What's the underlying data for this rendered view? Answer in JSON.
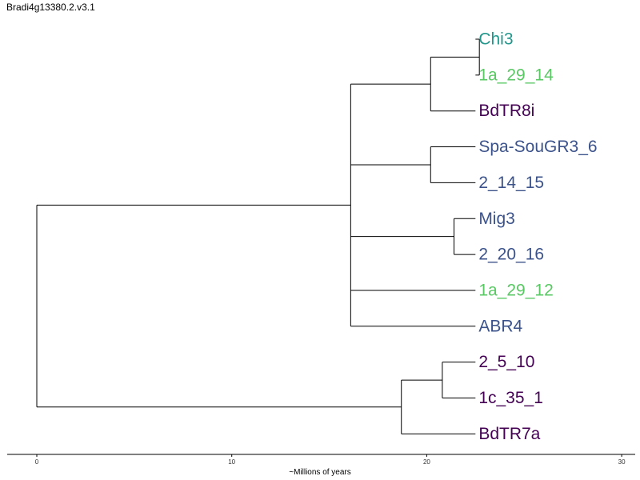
{
  "title": "Bradi4g13380.2.v3.1",
  "axis": {
    "label": "~Millions of years",
    "range": [
      0,
      30
    ],
    "ticks": [
      0,
      10,
      20,
      30
    ]
  },
  "palette": {
    "teal": "#22968b",
    "green": "#5ac864",
    "purple": "#440154",
    "blue": "#3b528b"
  },
  "tree": {
    "root_age": 0,
    "leaf_age": 22.5,
    "leaves": [
      {
        "label": "Chi3",
        "color": "teal"
      },
      {
        "label": "1a_29_14",
        "color": "green"
      },
      {
        "label": "BdTR8i",
        "color": "purple"
      },
      {
        "label": "Spa-SouGR3_6",
        "color": "blue"
      },
      {
        "label": "2_14_15",
        "color": "blue"
      },
      {
        "label": "Mig3",
        "color": "blue"
      },
      {
        "label": "2_20_16",
        "color": "blue"
      },
      {
        "label": "1a_29_12",
        "color": "green"
      },
      {
        "label": "ABR4",
        "color": "blue"
      },
      {
        "label": "2_5_10",
        "color": "purple"
      },
      {
        "label": "1c_35_1",
        "color": "purple"
      },
      {
        "label": "BdTR7a",
        "color": "purple"
      }
    ],
    "nodes": [
      {
        "id": "n1",
        "age": 22.7,
        "children": [
          0,
          1
        ]
      },
      {
        "id": "n2",
        "age": 20.2,
        "children": [
          "n1",
          2
        ]
      },
      {
        "id": "n3",
        "age": 20.2,
        "children": [
          3,
          4
        ]
      },
      {
        "id": "n4",
        "age": 21.4,
        "children": [
          5,
          6
        ]
      },
      {
        "id": "n5",
        "age": 16.1,
        "children": [
          "n2",
          "n3",
          "n4",
          7,
          8
        ]
      },
      {
        "id": "n6",
        "age": 20.8,
        "children": [
          9,
          10
        ]
      },
      {
        "id": "n7",
        "age": 18.7,
        "children": [
          "n6",
          11
        ]
      },
      {
        "id": "n8",
        "age": 0.0,
        "children": [
          "n5",
          "n7"
        ]
      }
    ]
  }
}
